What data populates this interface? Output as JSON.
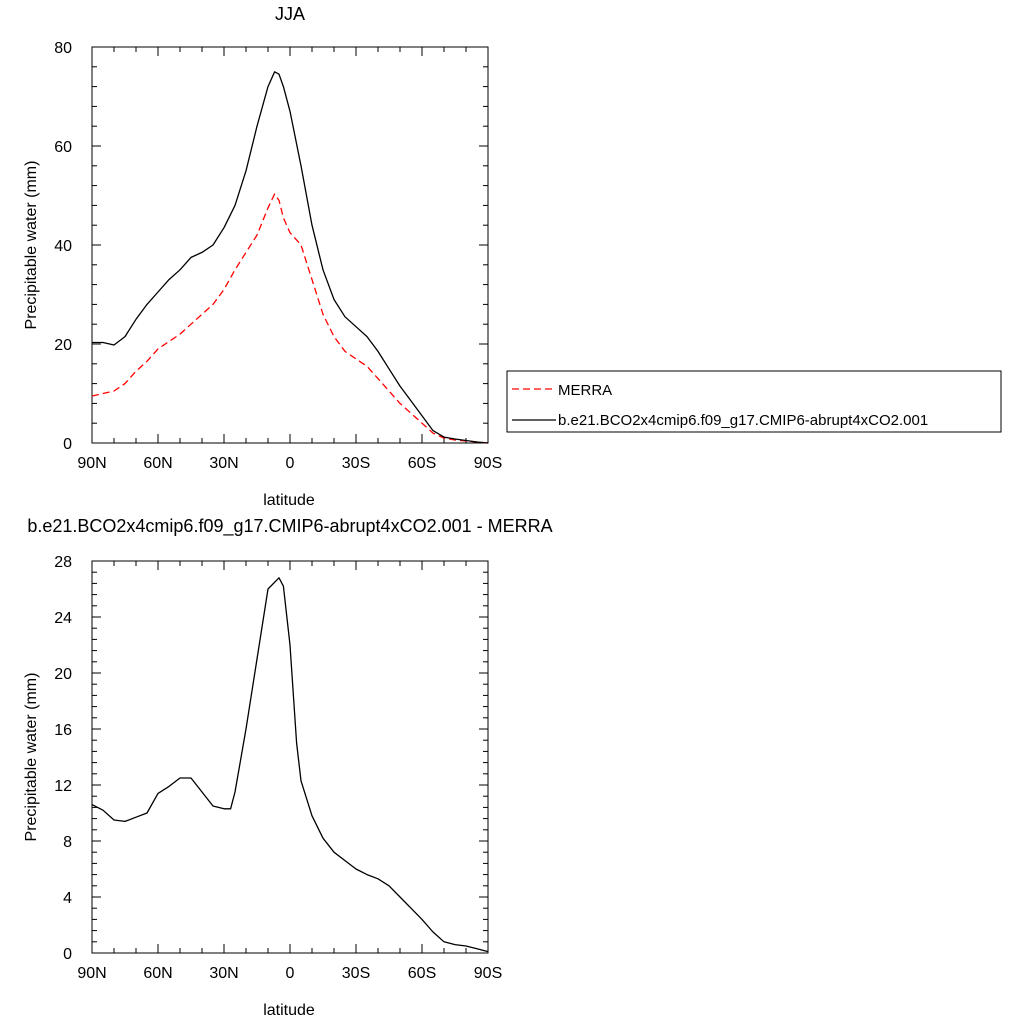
{
  "chart_data": [
    {
      "type": "line",
      "title": "JJA",
      "xlabel": "latitude",
      "ylabel": "Precipitable water (mm)",
      "xlim": [
        -90,
        90
      ],
      "ylim": [
        0,
        80
      ],
      "x_tick_values": [
        -90,
        -60,
        -30,
        0,
        30,
        60,
        90
      ],
      "x_tick_labels": [
        "90N",
        "60N",
        "30N",
        "0",
        "30S",
        "60S",
        "90S"
      ],
      "y_ticks": [
        0,
        20,
        40,
        60,
        80
      ],
      "y_tick_labels": [
        "0",
        "20",
        "40",
        "60",
        "80"
      ],
      "legend_position": "right",
      "series": [
        {
          "name": "MERRA",
          "color": "#ff0000",
          "dash": true,
          "x": [
            -90,
            -85,
            -80,
            -75,
            -70,
            -65,
            -60,
            -55,
            -50,
            -45,
            -40,
            -35,
            -30,
            -25,
            -20,
            -15,
            -10,
            -7,
            -5,
            -3,
            0,
            5,
            10,
            15,
            20,
            25,
            30,
            35,
            40,
            45,
            50,
            55,
            60,
            65,
            70,
            75,
            80,
            85,
            90
          ],
          "y": [
            9.5,
            10.0,
            10.5,
            12.0,
            14.5,
            16.5,
            19.0,
            20.5,
            22.0,
            24.0,
            26.0,
            28.0,
            31.0,
            35.0,
            38.5,
            42.0,
            47.5,
            50.3,
            49.0,
            45.5,
            42.5,
            40.0,
            33.0,
            26.0,
            21.5,
            18.5,
            17.0,
            15.5,
            13.0,
            10.5,
            8.0,
            6.0,
            4.0,
            2.0,
            1.0,
            0.6,
            0.4,
            0.2,
            0.0
          ]
        },
        {
          "name": "b.e21.BCO2x4cmip6.f09_g17.CMIP6-abrupt4xCO2.001",
          "color": "#000000",
          "dash": false,
          "x": [
            -90,
            -85,
            -80,
            -75,
            -70,
            -65,
            -60,
            -55,
            -50,
            -45,
            -40,
            -35,
            -30,
            -25,
            -20,
            -15,
            -10,
            -7,
            -5,
            -3,
            0,
            5,
            10,
            15,
            20,
            25,
            30,
            35,
            40,
            45,
            50,
            55,
            60,
            65,
            70,
            75,
            80,
            85,
            90
          ],
          "y": [
            20.3,
            20.3,
            19.8,
            21.5,
            25.0,
            28.0,
            30.5,
            33.0,
            35.0,
            37.5,
            38.5,
            40.0,
            43.5,
            48.0,
            55.0,
            64.0,
            72.0,
            75.0,
            74.5,
            72.0,
            67.0,
            56.0,
            44.0,
            35.0,
            29.0,
            25.5,
            23.5,
            21.5,
            18.5,
            15.0,
            11.5,
            8.5,
            5.5,
            2.5,
            1.2,
            0.8,
            0.5,
            0.2,
            0.0
          ]
        }
      ]
    },
    {
      "type": "line",
      "title": "b.e21.BCO2x4cmip6.f09_g17.CMIP6-abrupt4xCO2.001 - MERRA",
      "xlabel": "latitude",
      "ylabel": "Precipitable water (mm)",
      "xlim": [
        -90,
        90
      ],
      "ylim": [
        0,
        28
      ],
      "x_tick_values": [
        -90,
        -60,
        -30,
        0,
        30,
        60,
        90
      ],
      "x_tick_labels": [
        "90N",
        "60N",
        "30N",
        "0",
        "30S",
        "60S",
        "90S"
      ],
      "y_ticks": [
        0,
        4,
        8,
        12,
        16,
        20,
        24,
        28
      ],
      "y_tick_labels": [
        "0",
        "4",
        "8",
        "12",
        "16",
        "20",
        "24",
        "28"
      ],
      "series": [
        {
          "color": "#000000",
          "dash": false,
          "x": [
            -90,
            -85,
            -80,
            -75,
            -70,
            -65,
            -60,
            -55,
            -50,
            -45,
            -40,
            -35,
            -30,
            -27,
            -25,
            -20,
            -15,
            -10,
            -5,
            -3,
            0,
            3,
            5,
            10,
            15,
            20,
            25,
            30,
            35,
            40,
            45,
            50,
            55,
            60,
            65,
            70,
            75,
            80,
            85,
            90
          ],
          "y": [
            10.6,
            10.2,
            9.5,
            9.4,
            9.7,
            10.0,
            11.4,
            11.9,
            12.5,
            12.5,
            11.5,
            10.5,
            10.3,
            10.3,
            11.5,
            16.0,
            21.0,
            26.0,
            26.8,
            26.2,
            22.0,
            15.0,
            12.3,
            9.8,
            8.2,
            7.2,
            6.6,
            6.0,
            5.6,
            5.3,
            4.8,
            4.0,
            3.2,
            2.4,
            1.5,
            0.8,
            0.6,
            0.5,
            0.3,
            0.1
          ]
        }
      ]
    }
  ]
}
